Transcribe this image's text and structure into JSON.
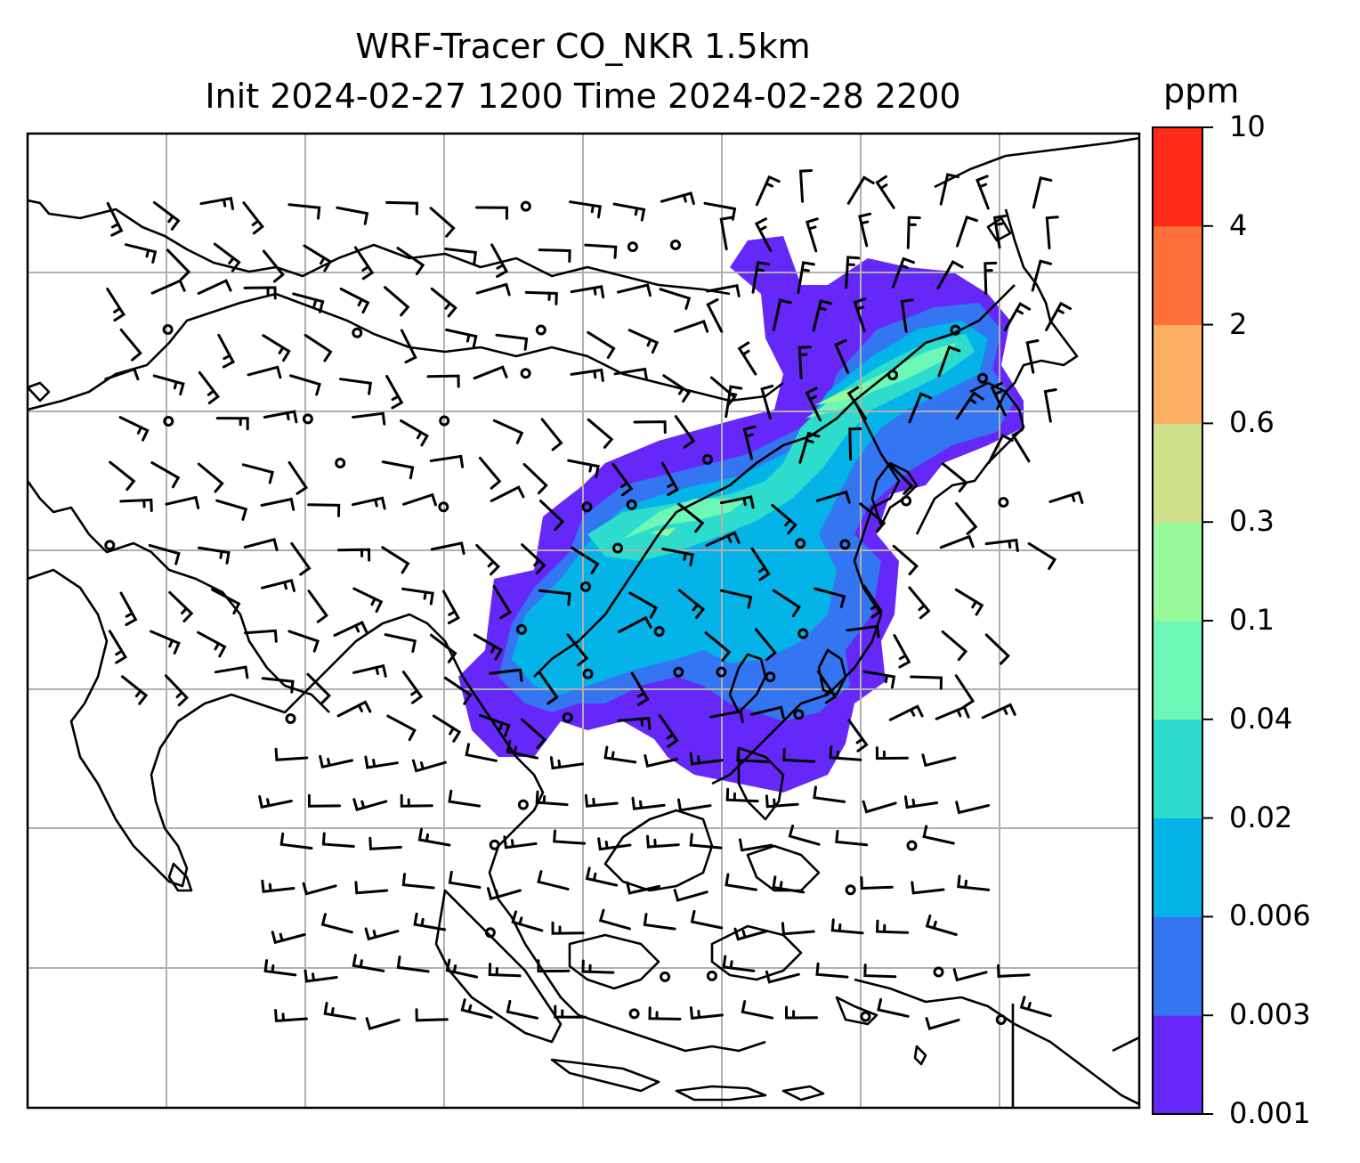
{
  "title": {
    "line1": "WRF-Tracer CO_NKR 1.5km",
    "line2": "Init 2024-02-27 1200 Time 2024-02-28 2200"
  },
  "colorbar": {
    "unit": "ppm",
    "levels": [
      "0.001",
      "0.003",
      "0.006",
      "0.02",
      "0.04",
      "0.1",
      "0.3",
      "0.6",
      "2",
      "4",
      "10"
    ],
    "colors": [
      "#6528f8",
      "#3475f1",
      "#04b3e8",
      "#2ddccc",
      "#6ef8b8",
      "#98f89a",
      "#cfe08b",
      "#fdb064",
      "#fe6f3a",
      "#ff2a17"
    ]
  },
  "map": {
    "variable": "CO_NKR tracer",
    "level": "1.5km",
    "overlay": "wind barbs",
    "gridlines": true,
    "coastlines": true,
    "icons": [
      "wind-barb-icon",
      "calm-wind-circle-icon"
    ]
  }
}
